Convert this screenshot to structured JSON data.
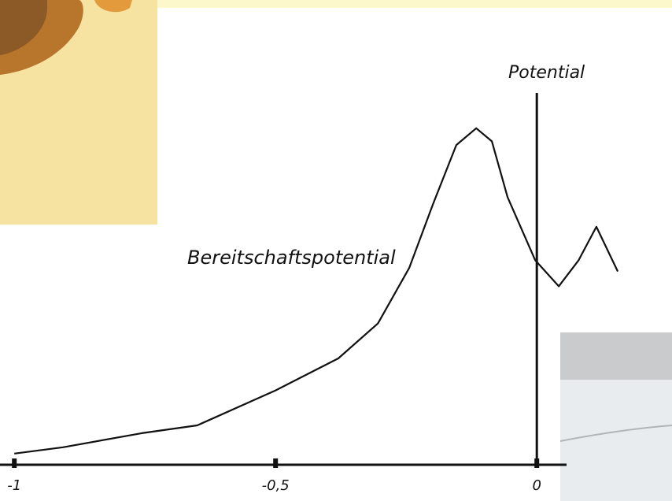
{
  "chart_data": {
    "type": "line",
    "y_label": "Potential",
    "annotation": "Bereitschaftspotential",
    "x": [
      -1,
      -0.907,
      -0.756,
      -0.65,
      -0.5,
      -0.38,
      -0.304,
      -0.244,
      -0.199,
      -0.154,
      -0.116,
      -0.086,
      -0.056,
      -0.003,
      0.042,
      0.08,
      0.114,
      0.155
    ],
    "series": [
      {
        "color": "#111111",
        "values": [
          0.03,
          0.047,
          0.085,
          0.106,
          0.2,
          0.286,
          0.38,
          0.53,
          0.7,
          0.86,
          0.905,
          0.87,
          0.72,
          0.55,
          0.48,
          0.55,
          0.64,
          0.52
        ]
      }
    ],
    "xlim": [
      -1.05,
      0.2
    ],
    "ylim": [
      0,
      1
    ],
    "xticks": [
      -1,
      {
        "value": -0.5,
        "label": "-0,5"
      },
      0
    ]
  }
}
